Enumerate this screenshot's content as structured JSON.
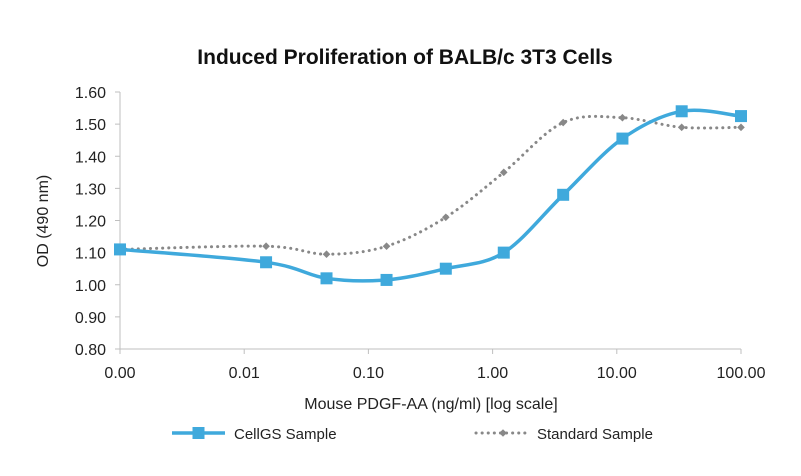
{
  "chart_data": {
    "type": "line",
    "title": "Induced Proliferation of BALB/c 3T3 Cells",
    "xlabel": "Mouse PDGF-AA (ng/ml) [log scale]",
    "ylabel": "OD (490 nm)",
    "x_scale": "log",
    "x_tick_labels": [
      "0.00",
      "0.01",
      "0.10",
      "1.00",
      "10.00",
      "100.00"
    ],
    "ylim": [
      0.8,
      1.6
    ],
    "y_ticks": [
      0.8,
      0.9,
      1.0,
      1.1,
      1.2,
      1.3,
      1.4,
      1.5,
      1.6
    ],
    "y_tick_labels": [
      "0.80",
      "0.90",
      "1.00",
      "1.10",
      "1.20",
      "1.30",
      "1.40",
      "1.50",
      "1.60"
    ],
    "grid": false,
    "legend_position": "bottom",
    "series": [
      {
        "name": "CellGS Sample",
        "color": "#3fa9dc",
        "style": "solid",
        "marker": "square",
        "x": [
          0.001,
          0.015,
          0.046,
          0.14,
          0.42,
          1.23,
          3.7,
          11.1,
          33.3,
          100
        ],
        "y": [
          1.11,
          1.07,
          1.02,
          1.015,
          1.05,
          1.1,
          1.28,
          1.455,
          1.54,
          1.525
        ]
      },
      {
        "name": "Standard Sample",
        "color": "#888888",
        "style": "dotted",
        "marker": "diamond",
        "x": [
          0.001,
          0.015,
          0.046,
          0.14,
          0.42,
          1.23,
          3.7,
          11.1,
          33.3,
          100
        ],
        "y": [
          1.11,
          1.12,
          1.095,
          1.12,
          1.21,
          1.35,
          1.505,
          1.52,
          1.49,
          1.49
        ]
      }
    ]
  }
}
